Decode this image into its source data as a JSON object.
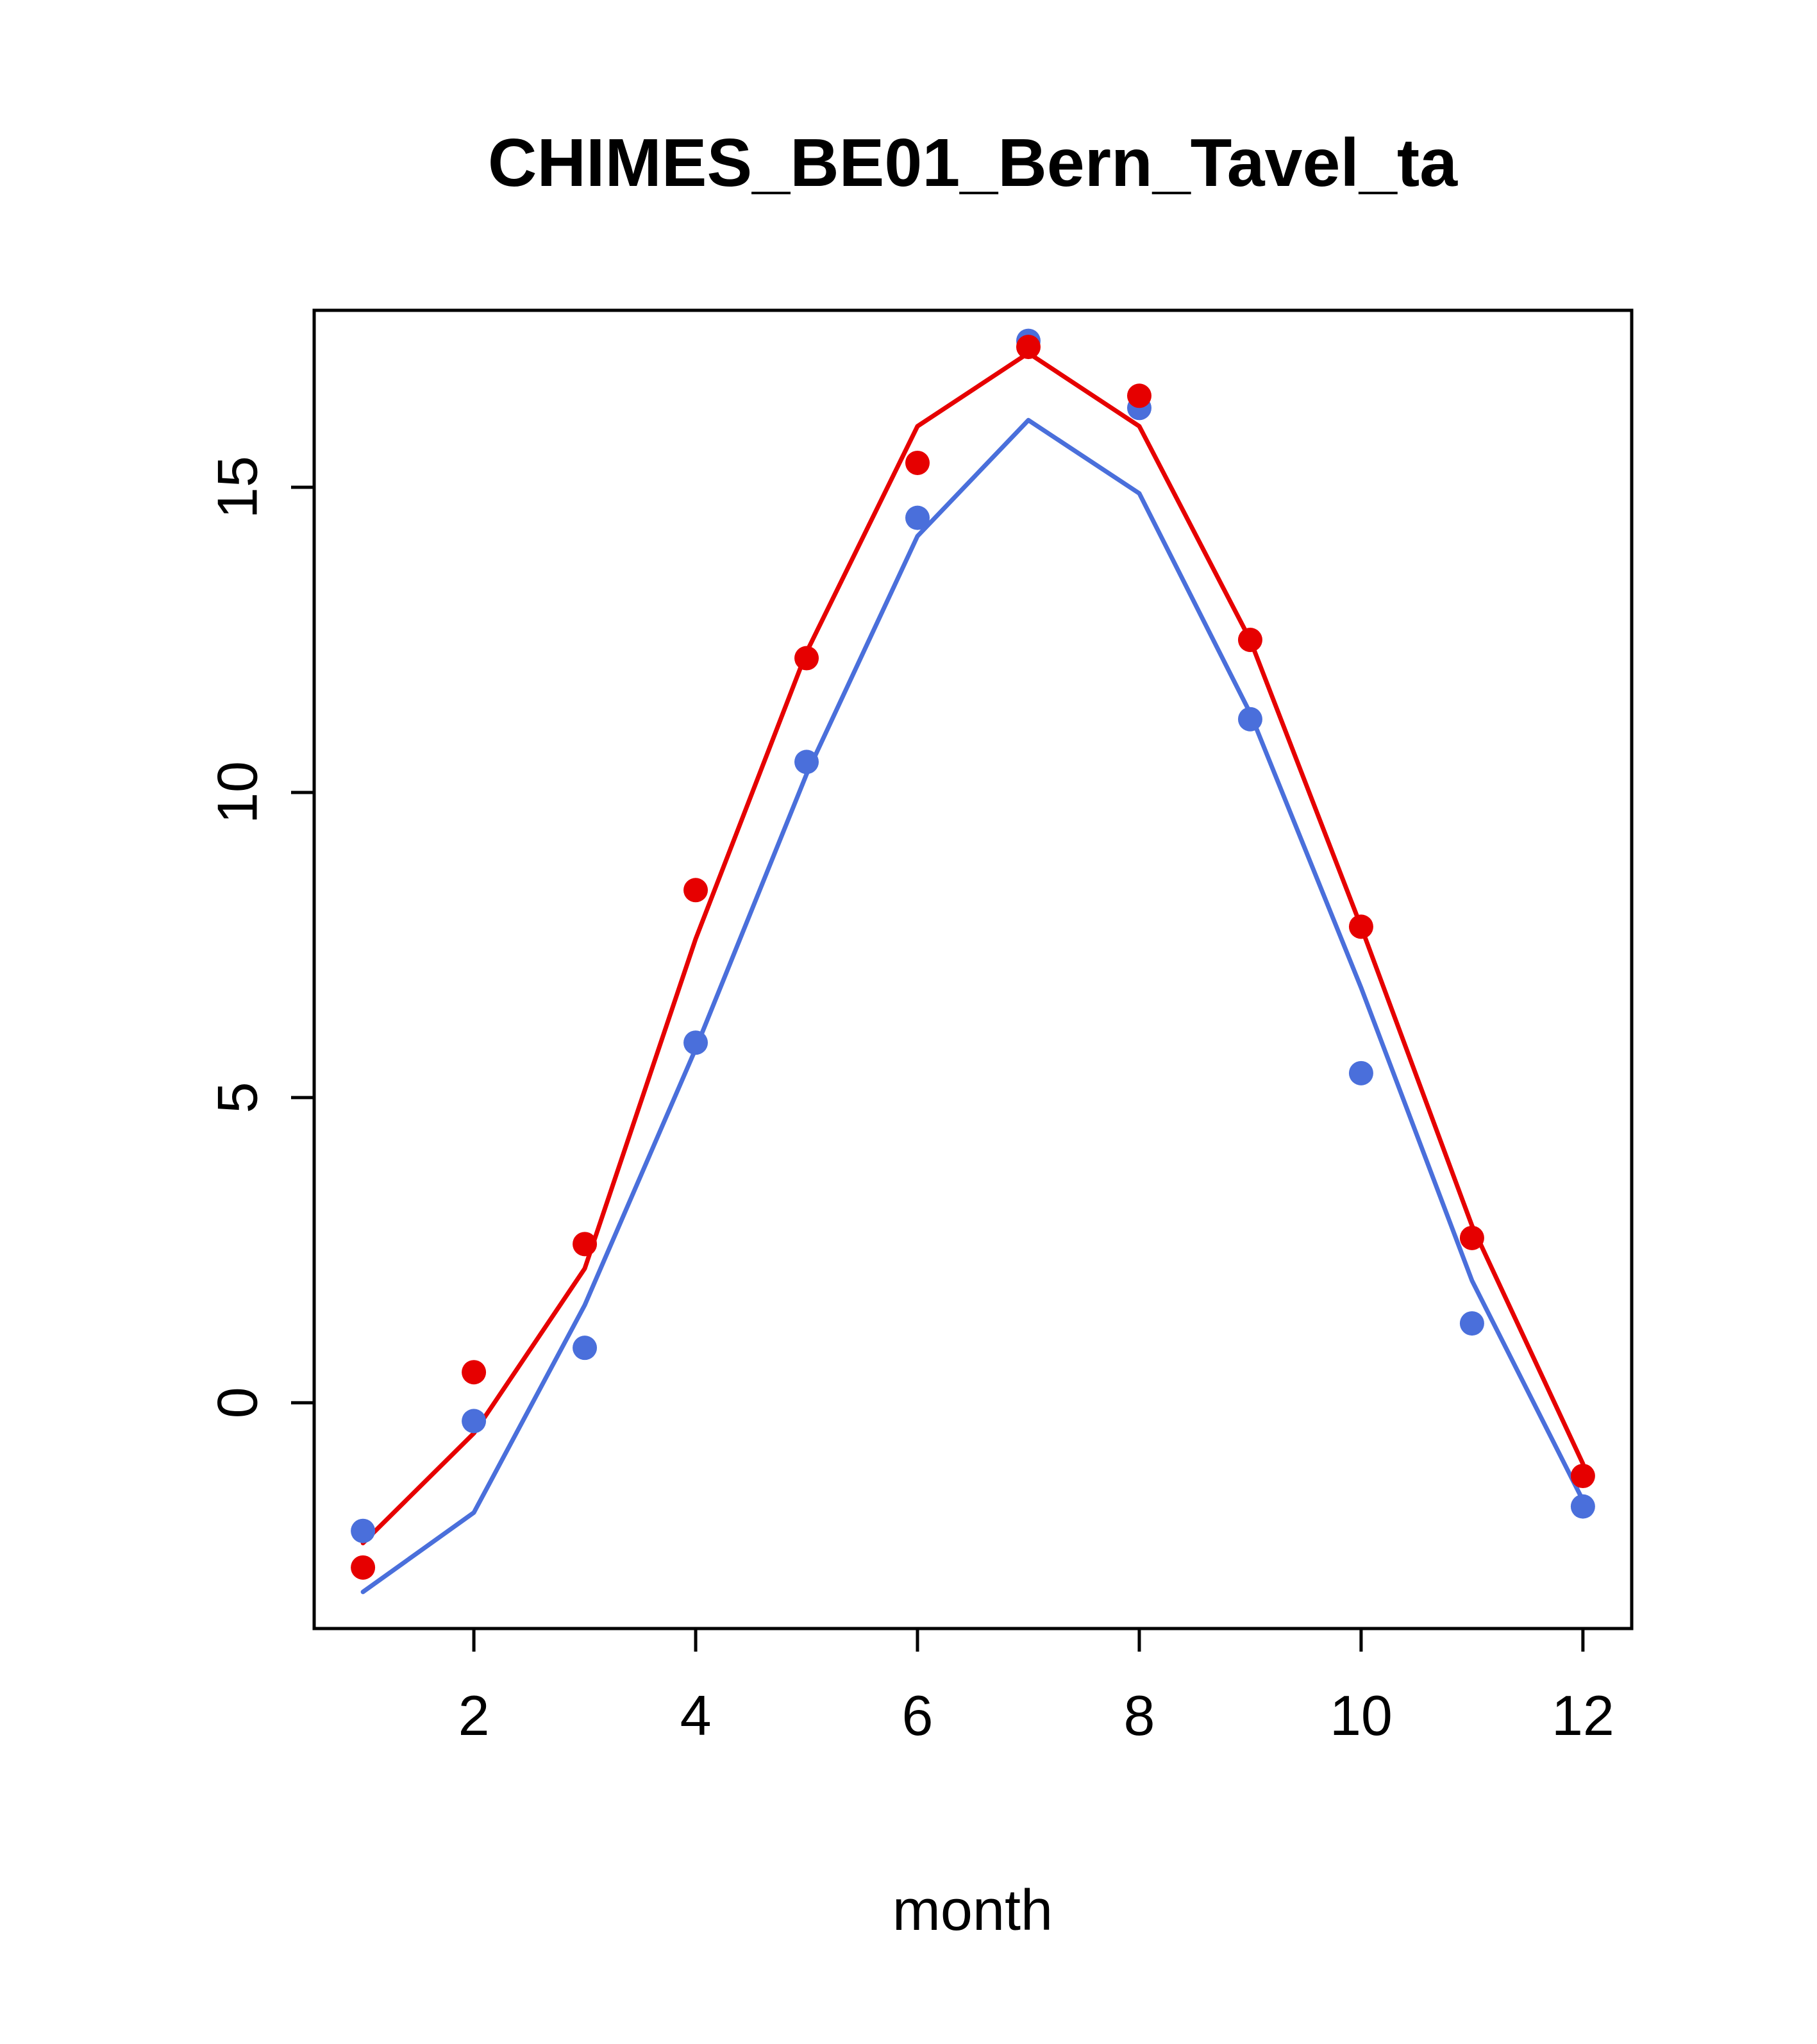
{
  "chart_data": {
    "type": "line",
    "title": "CHIMES_BE01_Bern_Tavel_ta",
    "xlabel": "month",
    "ylabel": "",
    "x": [
      1,
      2,
      3,
      4,
      5,
      6,
      7,
      8,
      9,
      10,
      11,
      12
    ],
    "xlim": [
      0.56,
      12.44
    ],
    "ylim": [
      -3.7,
      17.9
    ],
    "x_ticks": [
      2,
      4,
      6,
      8,
      10,
      12
    ],
    "y_ticks": [
      0,
      5,
      10,
      15
    ],
    "grid": false,
    "legend": false,
    "series": [
      {
        "name": "blue-line",
        "style": "line",
        "color": "#4a6fdb",
        "values": [
          -3.1,
          -1.8,
          1.6,
          5.8,
          10.3,
          14.2,
          16.1,
          14.9,
          11.3,
          6.8,
          2.0,
          -1.6
        ]
      },
      {
        "name": "red-line",
        "style": "line",
        "color": "#e60000",
        "values": [
          -2.3,
          -0.5,
          2.2,
          7.6,
          12.3,
          16.0,
          17.2,
          16.0,
          12.5,
          7.8,
          2.9,
          -1.0
        ]
      },
      {
        "name": "blue-points",
        "style": "points",
        "color": "#4a6fdb",
        "values": [
          -2.1,
          -0.3,
          0.9,
          5.9,
          10.5,
          14.5,
          17.4,
          16.3,
          11.2,
          5.4,
          1.3,
          -1.7
        ]
      },
      {
        "name": "red-points",
        "style": "points",
        "color": "#e60000",
        "values": [
          -2.7,
          0.5,
          2.6,
          8.4,
          12.2,
          15.4,
          17.3,
          16.5,
          12.5,
          7.8,
          2.7,
          -1.2
        ]
      }
    ]
  }
}
